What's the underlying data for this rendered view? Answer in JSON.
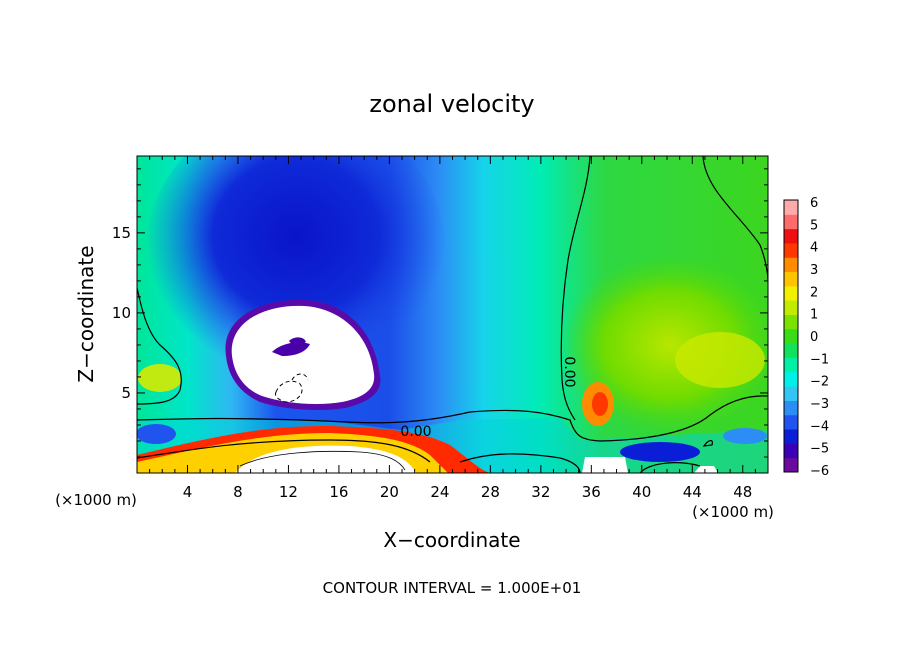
{
  "chart_data": {
    "type": "heatmap",
    "title": "zonal velocity",
    "xlabel": "X−coordinate",
    "ylabel": "Z−coordinate",
    "x_unit_label": "(×1000 m)",
    "x_unit_label_right": "(×1000 m)",
    "x_ticks": [
      4,
      8,
      12,
      16,
      20,
      24,
      28,
      32,
      36,
      40,
      44,
      48
    ],
    "y_ticks": [
      5,
      10,
      15
    ],
    "xlim": [
      0,
      50
    ],
    "ylim": [
      0,
      19.8
    ],
    "colorbar": {
      "ticks": [
        "6",
        "5",
        "4",
        "3",
        "2",
        "1",
        "0",
        "−1",
        "−2",
        "−3",
        "−4",
        "−5",
        "−6"
      ],
      "range": [
        -6,
        6
      ],
      "colors": [
        "#6a0a9e",
        "#3a00b8",
        "#0a1ed8",
        "#1f55ee",
        "#2c8ef5",
        "#32c6f4",
        "#00f0e8",
        "#00f0a6",
        "#12e25a",
        "#38dc18",
        "#7ae100",
        "#c0ec00",
        "#f0f000",
        "#ffc400",
        "#ff8c00",
        "#ff3800",
        "#ee1010",
        "#ff6a6a",
        "#ffaaaa"
      ]
    },
    "contour_label": "0.00",
    "footer": "CONTOUR INTERVAL = 1.000E+01"
  }
}
